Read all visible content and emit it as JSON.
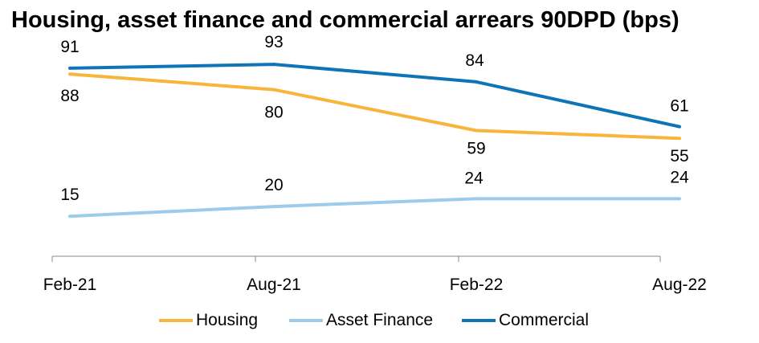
{
  "chart_data": {
    "type": "line",
    "title": "Housing, asset finance and commercial arrears 90DPD (bps)",
    "categories": [
      "Feb-21",
      "Aug-21",
      "Feb-22",
      "Aug-22"
    ],
    "xlabel": "",
    "ylabel": "",
    "ylim": [
      0,
      100
    ],
    "grid": false,
    "legend_position": "bottom",
    "series": [
      {
        "name": "Housing",
        "color": "#F7B53B",
        "values": [
          88,
          80,
          59,
          55
        ]
      },
      {
        "name": "Asset Finance",
        "color": "#9DCBEA",
        "values": [
          15,
          20,
          24,
          24
        ]
      },
      {
        "name": "Commercial",
        "color": "#0F74B7",
        "values": [
          91,
          93,
          84,
          61
        ]
      }
    ]
  }
}
